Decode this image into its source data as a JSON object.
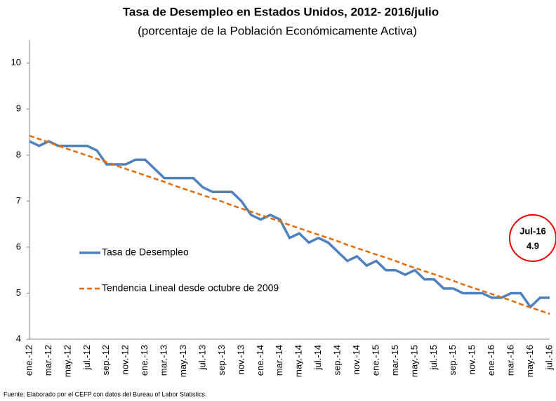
{
  "chart_data": {
    "type": "line",
    "title": "Tasa de Desempleo en Estados Unidos, 2012- 2016/julio",
    "subtitle": "(porcentaje de la Población Económicamente Activa)",
    "source": "Fuente: Elaborado por el CEFP con datos del Bureau of Labor Statistics.",
    "categories": [
      "ene.-12",
      null,
      "mar.-12",
      null,
      "may.-12",
      null,
      "jul.-12",
      null,
      "sep.-12",
      null,
      "nov.-12",
      null,
      "ene.-13",
      null,
      "mar.-13",
      null,
      "may.-13",
      null,
      "jul.-13",
      null,
      "sep.-13",
      null,
      "nov.-13",
      null,
      "ene.-14",
      null,
      "mar.-14",
      null,
      "may.-14",
      null,
      "jul.-14",
      null,
      "sep.-14",
      null,
      "nov.-14",
      null,
      "ene.-15",
      null,
      "mar.-15",
      null,
      "may.-15",
      null,
      "jul.-15",
      null,
      "sep.-15",
      null,
      "nov.-15",
      null,
      "ene.-16",
      null,
      "mar.-16",
      null,
      "may.-16",
      null,
      "jul.-16"
    ],
    "series": [
      {
        "name": "Tasa de Desempleo",
        "color": "#4f81bd",
        "dashed": false,
        "values": [
          8.3,
          8.2,
          8.3,
          8.2,
          8.2,
          8.2,
          8.2,
          8.1,
          7.8,
          7.8,
          7.8,
          7.9,
          7.9,
          7.7,
          7.5,
          7.5,
          7.5,
          7.5,
          7.3,
          7.2,
          7.2,
          7.2,
          7.0,
          6.7,
          6.6,
          6.7,
          6.6,
          6.2,
          6.3,
          6.1,
          6.2,
          6.1,
          5.9,
          5.7,
          5.8,
          5.6,
          5.7,
          5.5,
          5.5,
          5.4,
          5.5,
          5.3,
          5.3,
          5.1,
          5.1,
          5.0,
          5.0,
          5.0,
          4.9,
          4.9,
          5.0,
          5.0,
          4.7,
          4.9,
          4.9
        ]
      },
      {
        "name": "Tendencia Lineal desde octubre de 2009",
        "color": "#e46c0a",
        "dashed": true,
        "values": [
          8.42,
          8.35,
          8.28,
          8.2,
          8.13,
          8.06,
          7.99,
          7.92,
          7.85,
          7.77,
          7.7,
          7.63,
          7.56,
          7.49,
          7.42,
          7.34,
          7.27,
          7.2,
          7.13,
          7.06,
          6.99,
          6.91,
          6.84,
          6.77,
          6.7,
          6.63,
          6.56,
          6.48,
          6.41,
          6.34,
          6.27,
          6.2,
          6.13,
          6.05,
          5.98,
          5.91,
          5.84,
          5.77,
          5.7,
          5.62,
          5.55,
          5.48,
          5.41,
          5.34,
          5.27,
          5.19,
          5.12,
          5.05,
          4.98,
          4.91,
          4.84,
          4.76,
          4.69,
          4.62,
          4.55
        ]
      }
    ],
    "annotation": {
      "label": "Jul-16",
      "value": "4.9"
    },
    "ylim": [
      4,
      10.5
    ],
    "yticks": [
      4,
      5,
      6,
      7,
      8,
      9,
      10
    ],
    "grid": false
  }
}
